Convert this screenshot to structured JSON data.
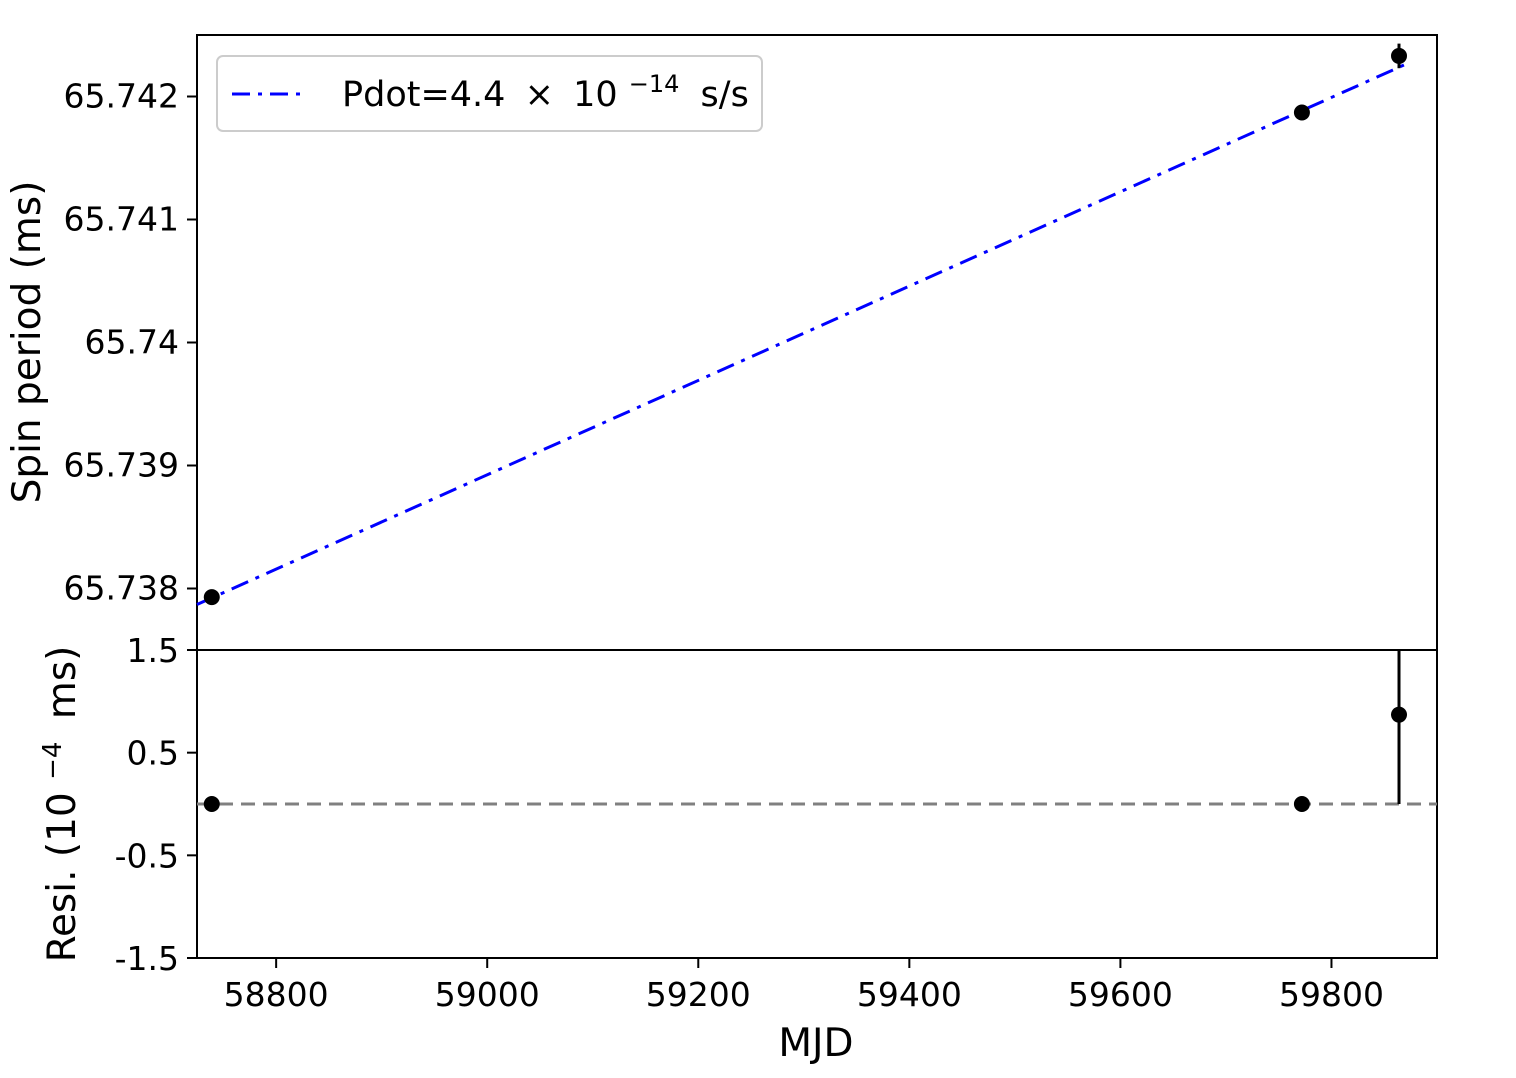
{
  "chart_data": [
    {
      "panel": "top",
      "type": "scatter",
      "xlabel": "",
      "ylabel": "Spin period (ms)",
      "xlim": [
        58725,
        59900
      ],
      "ylim": [
        65.7375,
        65.7425
      ],
      "yticks": [
        "65.742",
        "65.741",
        "65.74",
        "65.739",
        "65.738"
      ],
      "ytick_values": [
        65.742,
        65.741,
        65.74,
        65.739,
        65.738
      ],
      "points": [
        {
          "x": 58739,
          "y": 65.73793,
          "err": 2e-05
        },
        {
          "x": 59772,
          "y": 65.74187,
          "err": 2e-05
        },
        {
          "x": 59864,
          "y": 65.74233,
          "err": 0.0001
        }
      ],
      "fit_line": {
        "x": [
          58725,
          59875
        ],
        "y": [
          65.73787,
          65.74228
        ],
        "style": "dash-dot",
        "color": "#0000ff"
      },
      "legend": {
        "placement": "upper-left",
        "label_prefix": "Pdot=4.4",
        "label_times": "×",
        "label_base": "10",
        "label_exponent": "−14",
        "label_unit": "s/s"
      },
      "grid": false
    },
    {
      "panel": "bottom",
      "type": "scatter",
      "xlabel": "MJD",
      "ylabel_prefix": "Resi. (10",
      "ylabel_exponent": "−4",
      "ylabel_suffix": "ms)",
      "xlim": [
        58725,
        59900
      ],
      "ylim": [
        -1.5,
        1.5
      ],
      "xticks": [
        "58800",
        "59000",
        "59200",
        "59400",
        "59600",
        "59800"
      ],
      "xtick_values": [
        58800,
        59000,
        59200,
        59400,
        59600,
        59800
      ],
      "yticks": [
        "1.5",
        "0.5",
        "-0.5",
        "-1.5"
      ],
      "ytick_values": [
        1.5,
        0.5,
        -0.5,
        -1.5
      ],
      "points": [
        {
          "x": 58739,
          "y": 0.0,
          "err": 0.0
        },
        {
          "x": 59772,
          "y": 0.0,
          "err": 0.0
        },
        {
          "x": 59864,
          "y": 0.87,
          "err": 0.87
        }
      ],
      "reference_line": {
        "y": 0,
        "style": "dashed",
        "color": "#808080"
      },
      "grid": false
    }
  ]
}
